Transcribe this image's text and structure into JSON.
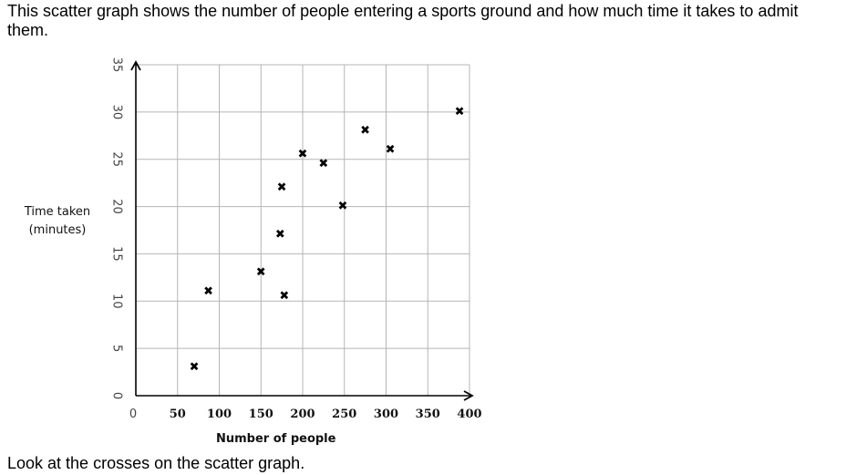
{
  "intro_text": "This scatter graph shows the number of people entering a sports ground and how much time it takes to admit them.",
  "footer_text": "Look at the crosses on the scatter graph.",
  "chart_data": {
    "type": "scatter",
    "title": "",
    "xlabel": "Number of people",
    "ylabel_lines": [
      "Time taken",
      "(minutes)"
    ],
    "xlim": [
      0,
      400
    ],
    "ylim": [
      0,
      35
    ],
    "x_ticks": [
      0,
      50,
      100,
      150,
      200,
      250,
      300,
      350,
      400
    ],
    "y_ticks": [
      0,
      5,
      10,
      15,
      20,
      25,
      30,
      35
    ],
    "grid": true,
    "marker": "✖",
    "points": [
      {
        "x": 70,
        "y": 3
      },
      {
        "x": 87,
        "y": 11
      },
      {
        "x": 150,
        "y": 13
      },
      {
        "x": 175,
        "y": 22
      },
      {
        "x": 173,
        "y": 17
      },
      {
        "x": 178,
        "y": 10.5
      },
      {
        "x": 200,
        "y": 25.5
      },
      {
        "x": 225,
        "y": 24.5
      },
      {
        "x": 248,
        "y": 20
      },
      {
        "x": 275,
        "y": 28
      },
      {
        "x": 305,
        "y": 26
      },
      {
        "x": 388,
        "y": 30
      }
    ]
  }
}
